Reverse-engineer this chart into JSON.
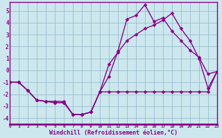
{
  "xlabel": "Windchill (Refroidissement éolien,°C)",
  "background_color": "#cce8ee",
  "line_color": "#880088",
  "grid_color": "#99bbcc",
  "xlim": [
    0,
    23
  ],
  "ylim": [
    -4.5,
    5.7
  ],
  "xticks": [
    0,
    1,
    2,
    3,
    4,
    5,
    6,
    7,
    8,
    9,
    10,
    11,
    12,
    13,
    14,
    15,
    16,
    17,
    18,
    19,
    20,
    21,
    22,
    23
  ],
  "yticks": [
    -4,
    -3,
    -2,
    -1,
    0,
    1,
    2,
    3,
    4,
    5
  ],
  "line1_x": [
    0,
    1,
    2,
    3,
    4,
    5,
    6,
    7,
    8,
    9,
    10,
    11,
    12,
    13,
    14,
    15,
    16,
    17,
    18,
    19,
    20,
    21,
    22,
    23
  ],
  "line1_y": [
    -1.0,
    -1.0,
    -1.7,
    -2.5,
    -2.6,
    -2.6,
    -2.6,
    -3.7,
    -3.7,
    -3.5,
    -1.8,
    -1.8,
    -1.8,
    -1.8,
    -1.8,
    -1.8,
    -1.8,
    -1.8,
    -1.8,
    -1.8,
    -1.8,
    -1.8,
    -1.8,
    -0.1
  ],
  "line2_x": [
    0,
    1,
    2,
    3,
    4,
    5,
    6,
    7,
    8,
    9,
    10,
    11,
    12,
    13,
    14,
    15,
    16,
    17,
    18,
    19,
    20,
    21,
    22,
    23
  ],
  "line2_y": [
    -1.0,
    -1.0,
    -1.7,
    -2.5,
    -2.6,
    -2.7,
    -2.7,
    -3.7,
    -3.7,
    -3.5,
    -1.8,
    -0.5,
    1.6,
    4.3,
    4.6,
    5.5,
    4.1,
    4.4,
    3.3,
    2.5,
    1.7,
    1.1,
    -0.3,
    -0.1
  ],
  "line3_x": [
    0,
    1,
    2,
    3,
    4,
    5,
    6,
    7,
    8,
    9,
    10,
    11,
    12,
    13,
    14,
    15,
    16,
    17,
    18,
    19,
    20,
    21,
    22,
    23
  ],
  "line3_y": [
    -1.0,
    -1.0,
    -1.7,
    -2.5,
    -2.6,
    -2.7,
    -2.7,
    -3.7,
    -3.7,
    -3.5,
    -1.8,
    0.5,
    1.5,
    2.5,
    3.0,
    3.5,
    3.8,
    4.2,
    4.8,
    3.5,
    2.5,
    1.0,
    -1.5,
    -0.1
  ],
  "marker": "D",
  "markersize": 2.5,
  "linewidth": 1.0
}
